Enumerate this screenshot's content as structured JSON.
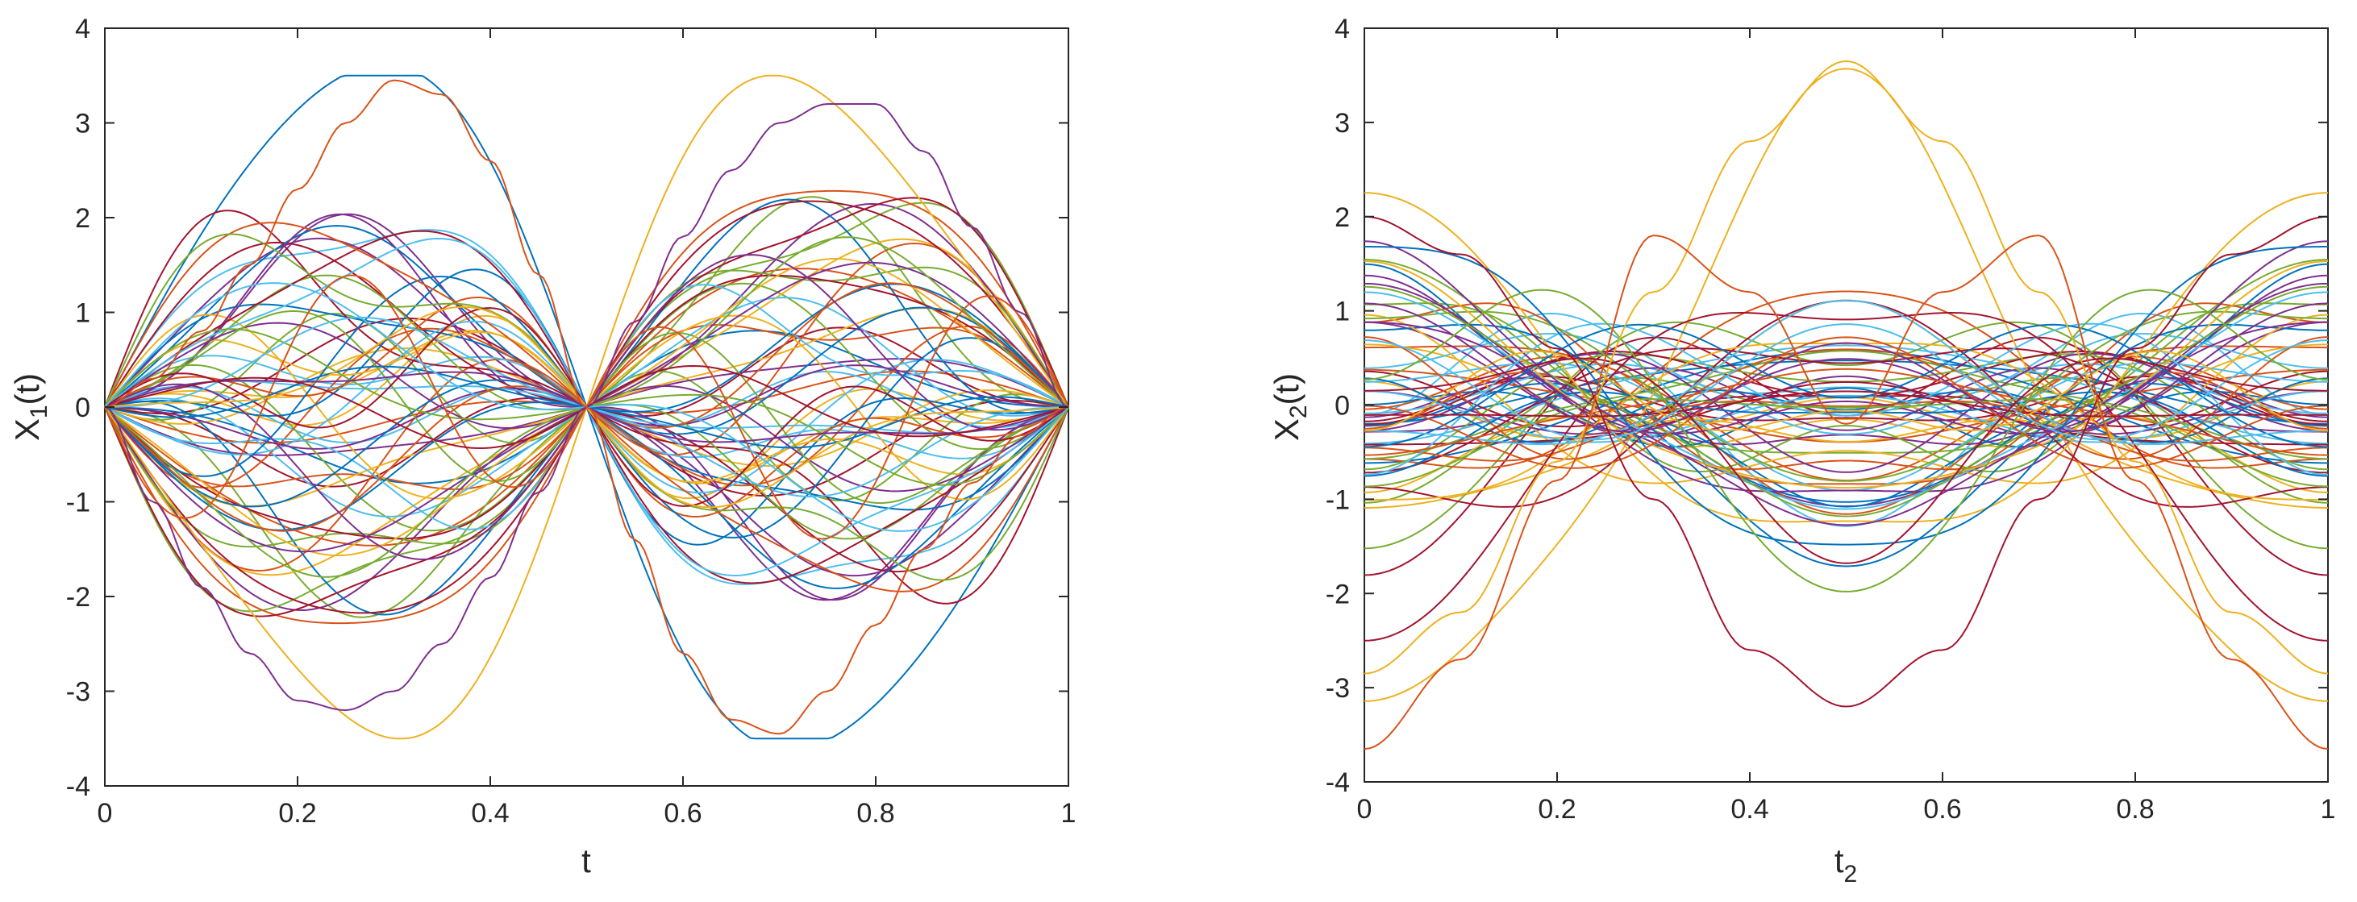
{
  "chart_data": [
    {
      "type": "line",
      "title": "",
      "xlabel": "t",
      "ylabel": "X",
      "ylabel_sub": "1",
      "ylabel_suffix": "(t)",
      "xlim": [
        0,
        1
      ],
      "ylim": [
        -4,
        4
      ],
      "x_ticks": [
        "0",
        "0.2",
        "0.4",
        "0.6",
        "0.8",
        "1"
      ],
      "y_ticks": [
        "-4",
        "-3",
        "-2",
        "-1",
        "0",
        "1",
        "2",
        "3",
        "4"
      ],
      "grid": false,
      "n_curves": 70,
      "series": [
        {
          "x": [
            0,
            0.05,
            0.1,
            0.15,
            0.2,
            0.25,
            0.3,
            0.35,
            0.4,
            0.45,
            0.5,
            0.55,
            0.6,
            0.65,
            0.7,
            0.75,
            0.8,
            0.85,
            0.9,
            0.95,
            1
          ],
          "values": [
            0,
            -1.0,
            -1.9,
            -2.6,
            -3.1,
            -3.2,
            -3.0,
            -2.5,
            -1.8,
            -0.9,
            0,
            0.9,
            1.8,
            2.5,
            3.0,
            3.2,
            3.2,
            2.7,
            1.9,
            1.0,
            0
          ]
        },
        {
          "x": [
            0,
            0.05,
            0.1,
            0.15,
            0.2,
            0.25,
            0.3,
            0.35,
            0.4,
            0.45,
            0.5,
            0.55,
            0.6,
            0.65,
            0.7,
            0.75,
            0.8,
            0.85,
            0.9,
            0.95,
            1
          ],
          "values": [
            0,
            0.3,
            0.8,
            1.5,
            2.3,
            3.0,
            3.45,
            3.3,
            2.6,
            1.4,
            0,
            -1.4,
            -2.6,
            -3.3,
            -3.45,
            -3.0,
            -2.3,
            -1.5,
            -0.8,
            -0.3,
            0
          ]
        }
      ]
    },
    {
      "type": "line",
      "title": "",
      "xlabel": "t",
      "xlabel_sub": "2",
      "ylabel": "X",
      "ylabel_sub": "2",
      "ylabel_suffix": "(t)",
      "xlim": [
        0,
        1
      ],
      "ylim": [
        -4,
        4
      ],
      "x_ticks": [
        "0",
        "0.2",
        "0.4",
        "0.6",
        "0.8",
        "1"
      ],
      "y_ticks": [
        "-4",
        "-3",
        "-2",
        "-1",
        "0",
        "1",
        "2",
        "3",
        "4"
      ],
      "grid": false,
      "n_curves": 70,
      "series": [
        {
          "x": [
            0,
            0.1,
            0.2,
            0.3,
            0.4,
            0.5,
            0.6,
            0.7,
            0.8,
            0.9,
            1
          ],
          "values": [
            -2.85,
            -2.2,
            -0.6,
            1.2,
            2.8,
            3.65,
            2.8,
            1.2,
            -0.6,
            -2.2,
            -2.85
          ]
        },
        {
          "x": [
            0,
            0.1,
            0.2,
            0.3,
            0.4,
            0.5,
            0.6,
            0.7,
            0.8,
            0.9,
            1
          ],
          "values": [
            2.0,
            1.6,
            0.6,
            -1.0,
            -2.6,
            -3.2,
            -2.6,
            -1.0,
            0.6,
            1.6,
            2.0
          ]
        },
        {
          "x": [
            0,
            0.1,
            0.2,
            0.3,
            0.4,
            0.5,
            0.6,
            0.7,
            0.8,
            0.9,
            1
          ],
          "values": [
            -3.65,
            -2.7,
            -0.8,
            1.8,
            1.2,
            -0.2,
            1.2,
            1.8,
            -0.8,
            -2.7,
            -3.65
          ]
        }
      ]
    }
  ],
  "colors": [
    "#0072BD",
    "#D95319",
    "#EDB120",
    "#7E2F8E",
    "#77AC30",
    "#4DBEEE",
    "#A2142F"
  ]
}
